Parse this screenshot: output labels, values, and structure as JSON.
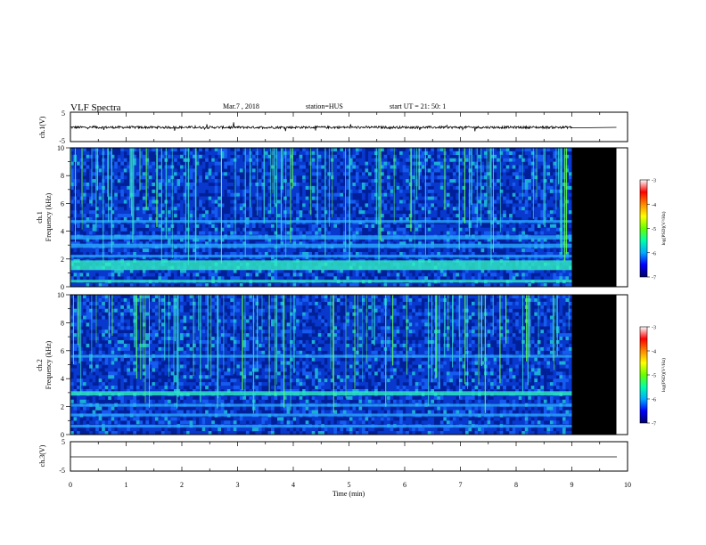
{
  "header": {
    "title": "VLF Spectra",
    "date": "Mar.7 , 2018",
    "station": "station=HUS",
    "start": "start  UT  =  21: 50: 1"
  },
  "chart_data": [
    {
      "type": "line",
      "panel": "ch1-waveform",
      "ylabel": "ch.1(V)",
      "ylim": [
        -5,
        5
      ],
      "yticks": [
        "5",
        "-5"
      ],
      "xlim": [
        0,
        10
      ],
      "data_end_min": 9.0,
      "baseline_v": 0,
      "description_note_hidden": false
    },
    {
      "type": "heatmap",
      "panel": "ch1-spectrogram",
      "ylabel": "ch.1\nFrequency (kHz)",
      "ylabel_lines": [
        "ch.1",
        "Frequency  (kHz)"
      ],
      "ylim": [
        0,
        10
      ],
      "yticks": [
        "0",
        "2",
        "4",
        "6",
        "8",
        "10"
      ],
      "xlim": [
        0,
        10
      ],
      "data_end_min": 9.0,
      "colorbar": {
        "label": "log(PSD)(V²/Hz)",
        "range": [
          -7,
          -3
        ],
        "ticks": [
          "-3",
          "-4",
          "-5",
          "-6",
          "-7"
        ]
      },
      "bands_khz": [
        {
          "f0": 0.3,
          "f1": 0.5,
          "level": 0.62
        },
        {
          "f0": 1.2,
          "f1": 1.9,
          "level": 0.55
        },
        {
          "f0": 2.1,
          "f1": 2.3,
          "level": 0.42
        },
        {
          "f0": 2.8,
          "f1": 3.1,
          "level": 0.48
        },
        {
          "f0": 3.4,
          "f1": 3.7,
          "level": 0.45
        },
        {
          "f0": 4.6,
          "f1": 4.8,
          "level": 0.42
        }
      ]
    },
    {
      "type": "heatmap",
      "panel": "ch2-spectrogram",
      "ylabel_lines": [
        "ch.2",
        "Frequency  (kHz)"
      ],
      "ylim": [
        0,
        10
      ],
      "yticks": [
        "0",
        "2",
        "4",
        "6",
        "8",
        "10"
      ],
      "xlim": [
        0,
        10
      ],
      "data_end_min": 9.0,
      "colorbar": {
        "label": "log(PSD)(V²/Hz)",
        "range": [
          -7,
          -3
        ],
        "ticks": [
          "-3",
          "-4",
          "-5",
          "-6",
          "-7"
        ]
      },
      "bands_khz": [
        {
          "f0": 0.5,
          "f1": 0.7,
          "level": 0.5
        },
        {
          "f0": 1.3,
          "f1": 1.5,
          "level": 0.45
        },
        {
          "f0": 2.0,
          "f1": 2.2,
          "level": 0.42
        },
        {
          "f0": 2.8,
          "f1": 3.1,
          "level": 0.55
        },
        {
          "f0": 5.5,
          "f1": 5.7,
          "level": 0.38
        }
      ]
    },
    {
      "type": "line",
      "panel": "ch3-waveform",
      "ylabel": "ch.3(V)",
      "ylim": [
        -5,
        5
      ],
      "yticks": [
        "5",
        "-5"
      ],
      "xlim": [
        0,
        10
      ],
      "baseline_v": 0
    }
  ],
  "xaxis": {
    "label": "Time  (min)",
    "ticks": [
      "0",
      "1",
      "2",
      "3",
      "4",
      "5",
      "6",
      "7",
      "8",
      "9",
      "10"
    ]
  },
  "colors": {
    "background": "#00007a",
    "no_data": "#000000",
    "colormap": [
      "#000066",
      "#0000ff",
      "#00aaff",
      "#00ffaa",
      "#66ff00",
      "#ffff00",
      "#ff8800",
      "#ff0000",
      "#ffffff"
    ]
  }
}
